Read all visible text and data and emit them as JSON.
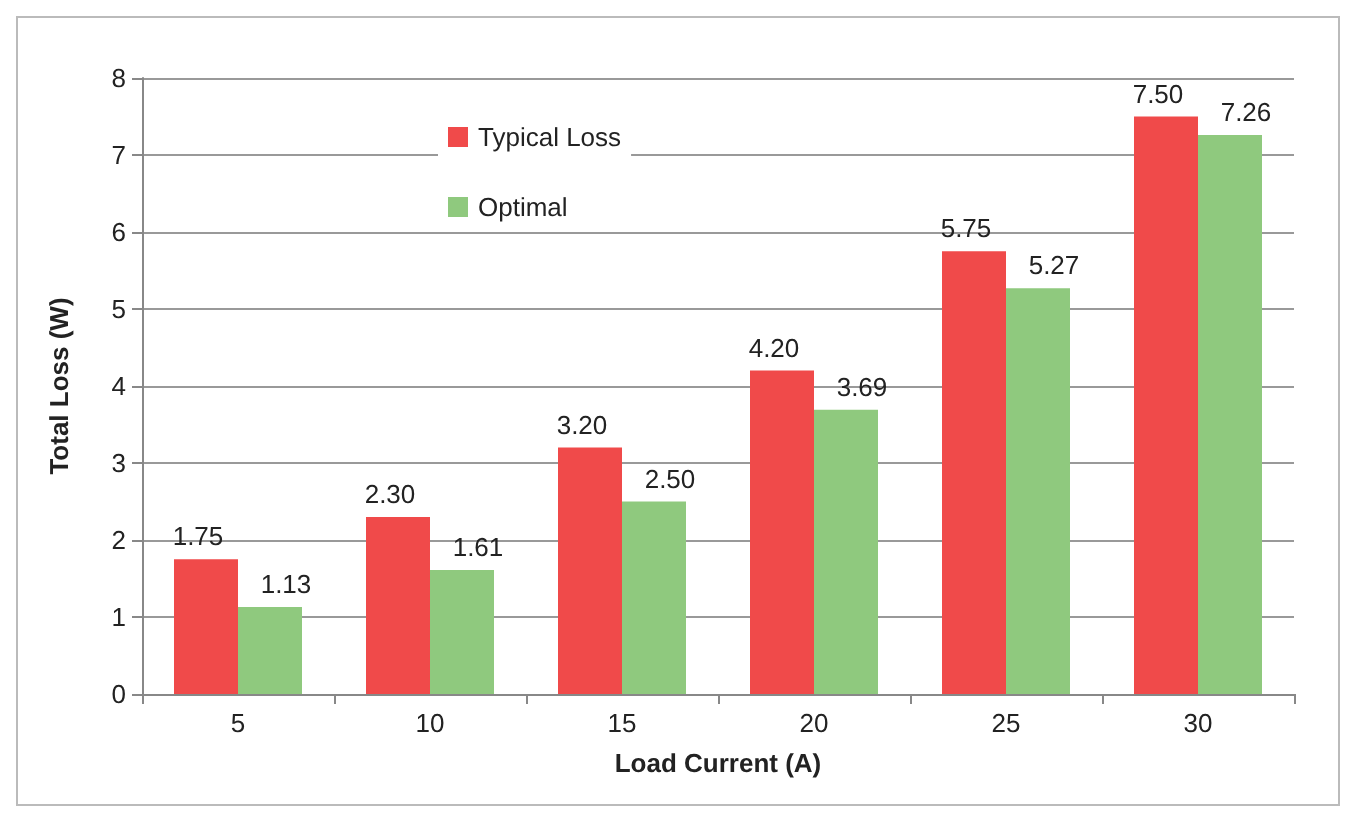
{
  "chart_data": {
    "type": "bar",
    "xlabel": "Load Current (A)",
    "ylabel": "Total Loss (W)",
    "categories": [
      "5",
      "10",
      "15",
      "20",
      "25",
      "30"
    ],
    "series": [
      {
        "name": "Typical Loss",
        "color": "#f04a4a",
        "values": [
          1.75,
          2.3,
          3.2,
          4.2,
          5.75,
          7.5
        ],
        "value_labels": [
          "1.75",
          "2.30",
          "3.20",
          "4.20",
          "5.75",
          "7.50"
        ]
      },
      {
        "name": "Optimal",
        "color": "#8fc97e",
        "values": [
          1.13,
          1.61,
          2.5,
          3.69,
          5.27,
          7.26
        ],
        "value_labels": [
          "1.13",
          "1.61",
          "2.50",
          "3.69",
          "5.27",
          "7.26"
        ]
      }
    ],
    "ylim": [
      0,
      8
    ],
    "yticks": [
      0,
      1,
      2,
      3,
      4,
      5,
      6,
      7,
      8
    ],
    "grid": "y",
    "legend": "top"
  }
}
